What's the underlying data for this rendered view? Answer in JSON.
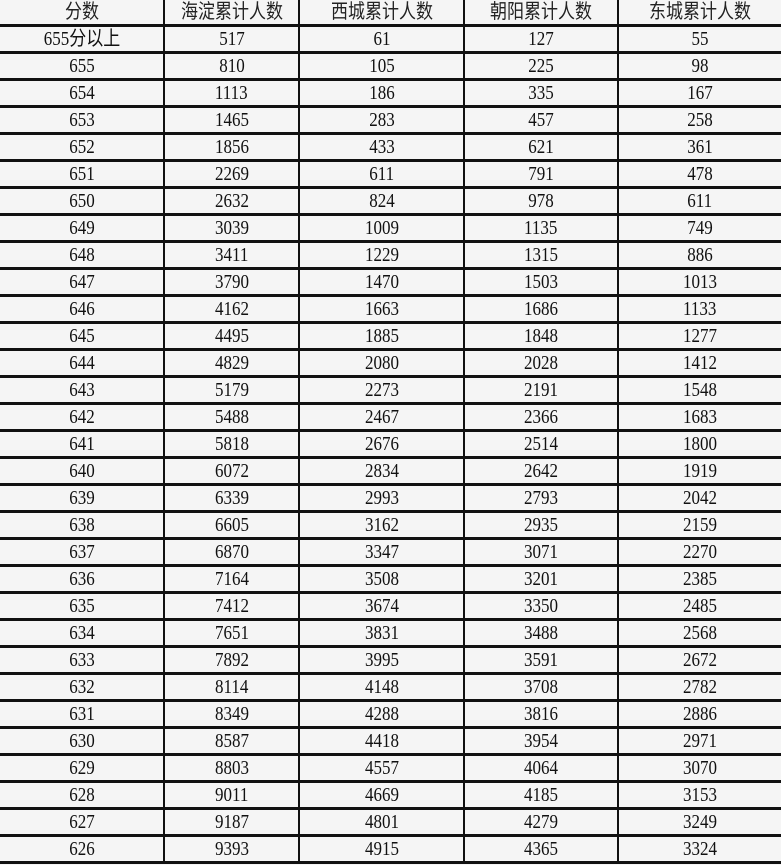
{
  "table": {
    "headers": [
      "分数",
      "海淀累计人数",
      "西城累计人数",
      "朝阳累计人数",
      "东城累计人数"
    ],
    "rows": [
      [
        "655分以上",
        "517",
        "61",
        "127",
        "55"
      ],
      [
        "655",
        "810",
        "105",
        "225",
        "98"
      ],
      [
        "654",
        "1113",
        "186",
        "335",
        "167"
      ],
      [
        "653",
        "1465",
        "283",
        "457",
        "258"
      ],
      [
        "652",
        "1856",
        "433",
        "621",
        "361"
      ],
      [
        "651",
        "2269",
        "611",
        "791",
        "478"
      ],
      [
        "650",
        "2632",
        "824",
        "978",
        "611"
      ],
      [
        "649",
        "3039",
        "1009",
        "1135",
        "749"
      ],
      [
        "648",
        "3411",
        "1229",
        "1315",
        "886"
      ],
      [
        "647",
        "3790",
        "1470",
        "1503",
        "1013"
      ],
      [
        "646",
        "4162",
        "1663",
        "1686",
        "1133"
      ],
      [
        "645",
        "4495",
        "1885",
        "1848",
        "1277"
      ],
      [
        "644",
        "4829",
        "2080",
        "2028",
        "1412"
      ],
      [
        "643",
        "5179",
        "2273",
        "2191",
        "1548"
      ],
      [
        "642",
        "5488",
        "2467",
        "2366",
        "1683"
      ],
      [
        "641",
        "5818",
        "2676",
        "2514",
        "1800"
      ],
      [
        "640",
        "6072",
        "2834",
        "2642",
        "1919"
      ],
      [
        "639",
        "6339",
        "2993",
        "2793",
        "2042"
      ],
      [
        "638",
        "6605",
        "3162",
        "2935",
        "2159"
      ],
      [
        "637",
        "6870",
        "3347",
        "3071",
        "2270"
      ],
      [
        "636",
        "7164",
        "3508",
        "3201",
        "2385"
      ],
      [
        "635",
        "7412",
        "3674",
        "3350",
        "2485"
      ],
      [
        "634",
        "7651",
        "3831",
        "3488",
        "2568"
      ],
      [
        "633",
        "7892",
        "3995",
        "3591",
        "2672"
      ],
      [
        "632",
        "8114",
        "4148",
        "3708",
        "2782"
      ],
      [
        "631",
        "8349",
        "4288",
        "3816",
        "2886"
      ],
      [
        "630",
        "8587",
        "4418",
        "3954",
        "2971"
      ],
      [
        "629",
        "8803",
        "4557",
        "4064",
        "3070"
      ],
      [
        "628",
        "9011",
        "4669",
        "4185",
        "3153"
      ],
      [
        "627",
        "9187",
        "4801",
        "4279",
        "3249"
      ],
      [
        "626",
        "9393",
        "4915",
        "4365",
        "3324"
      ]
    ]
  }
}
